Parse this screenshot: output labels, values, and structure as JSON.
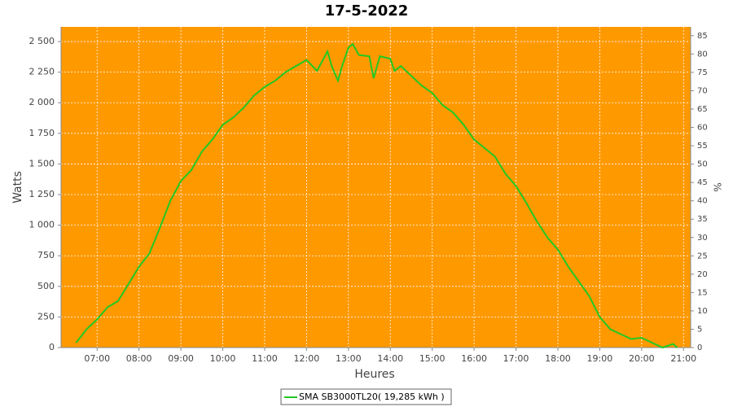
{
  "chart_data": {
    "type": "line",
    "title": "17-5-2022",
    "x_label": "Heures",
    "y_label": "Watts",
    "y2_label": "%",
    "x": [
      6.5,
      6.75,
      7,
      7.25,
      7.5,
      7.75,
      8,
      8.25,
      8.5,
      8.75,
      9,
      9.25,
      9.5,
      9.75,
      10,
      10.25,
      10.5,
      10.75,
      11,
      11.25,
      11.5,
      11.75,
      12,
      12.25,
      12.5,
      12.6,
      12.75,
      12.85,
      13,
      13.1,
      13.25,
      13.5,
      13.6,
      13.75,
      14,
      14.1,
      14.25,
      14.5,
      14.75,
      15,
      15.25,
      15.5,
      15.75,
      16,
      16.25,
      16.5,
      16.75,
      17,
      17.25,
      17.5,
      17.75,
      18,
      18.25,
      18.5,
      18.75,
      19,
      19.25,
      19.5,
      19.75,
      20,
      20.25,
      20.5,
      20.75,
      20.85
    ],
    "series": [
      {
        "name": "SMA SB3000TL20( 19,285 kWh )",
        "color": "#22c822",
        "values": [
          40,
          150,
          230,
          330,
          380,
          520,
          660,
          770,
          980,
          1200,
          1360,
          1450,
          1600,
          1700,
          1820,
          1880,
          1960,
          2060,
          2130,
          2180,
          2250,
          2300,
          2350,
          2260,
          2420,
          2300,
          2180,
          2300,
          2450,
          2480,
          2390,
          2380,
          2200,
          2380,
          2360,
          2260,
          2300,
          2220,
          2140,
          2080,
          1980,
          1920,
          1820,
          1700,
          1630,
          1560,
          1420,
          1320,
          1180,
          1030,
          900,
          800,
          660,
          540,
          420,
          250,
          150,
          110,
          70,
          80,
          40,
          0,
          30,
          0
        ]
      }
    ],
    "xlim": [
      6.14,
      21.17
    ],
    "xticks": [
      {
        "value": 7,
        "label": "07:00"
      },
      {
        "value": 8,
        "label": "08:00"
      },
      {
        "value": 9,
        "label": "09:00"
      },
      {
        "value": 10,
        "label": "10:00"
      },
      {
        "value": 11,
        "label": "11:00"
      },
      {
        "value": 12,
        "label": "12:00"
      },
      {
        "value": 13,
        "label": "13:00"
      },
      {
        "value": 14,
        "label": "14:00"
      },
      {
        "value": 15,
        "label": "15:00"
      },
      {
        "value": 16,
        "label": "16:00"
      },
      {
        "value": 17,
        "label": "17:00"
      },
      {
        "value": 18,
        "label": "18:00"
      },
      {
        "value": 19,
        "label": "19:00"
      },
      {
        "value": 20,
        "label": "20:00"
      },
      {
        "value": 21,
        "label": "21:00"
      }
    ],
    "ylim": [
      0,
      2620
    ],
    "yticks": [
      0,
      250,
      500,
      750,
      {
        "value": 1000,
        "label": "1 000"
      },
      {
        "value": 1250,
        "label": "1 250"
      },
      {
        "value": 1500,
        "label": "1 500"
      },
      {
        "value": 1750,
        "label": "1 750"
      },
      {
        "value": 2000,
        "label": "2 000"
      },
      {
        "value": 2250,
        "label": "2 250"
      },
      {
        "value": 2500,
        "label": "2 500"
      }
    ],
    "y2lim": [
      0,
      87.4
    ],
    "y2ticks": [
      0,
      5,
      10,
      15,
      20,
      25,
      30,
      35,
      40,
      45,
      50,
      55,
      60,
      65,
      70,
      75,
      80,
      85
    ],
    "grid": true,
    "plot_background": "#ff9900"
  }
}
